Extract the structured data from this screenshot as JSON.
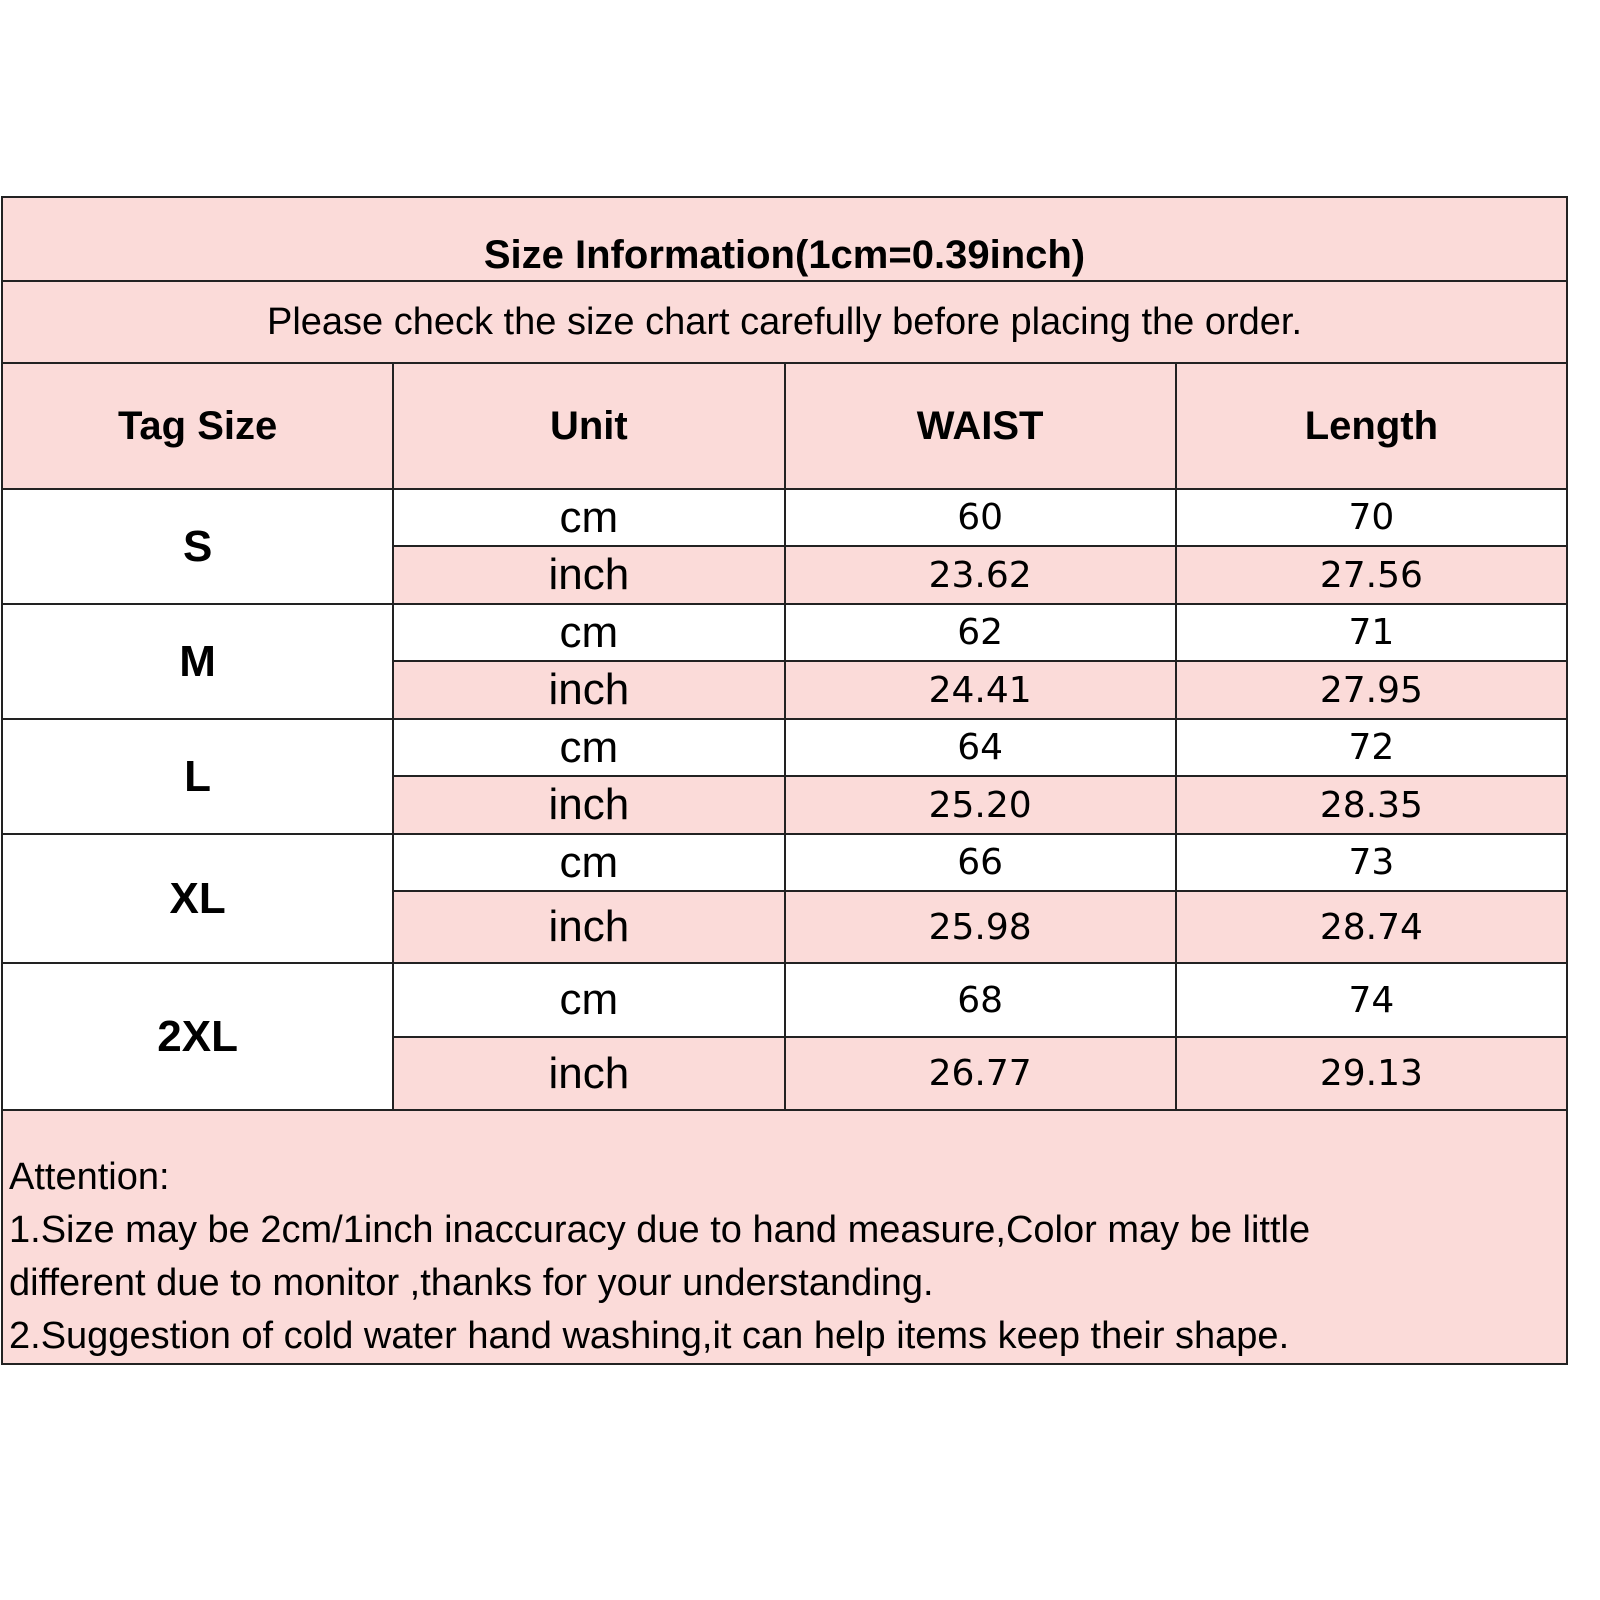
{
  "title": "Size Information(1cm=0.39inch)",
  "subtitle": "Please check the size chart carefully before placing the order.",
  "headers": [
    "Tag Size",
    "Unit",
    "WAIST",
    "Length"
  ],
  "rows": [
    {
      "size": "S",
      "cm": {
        "unit": "cm",
        "waist": "60",
        "length": "70"
      },
      "inch": {
        "unit": "inch",
        "waist": "23.62",
        "length": "27.56"
      }
    },
    {
      "size": "M",
      "cm": {
        "unit": "cm",
        "waist": "62",
        "length": "71"
      },
      "inch": {
        "unit": "inch",
        "waist": "24.41",
        "length": "27.95"
      }
    },
    {
      "size": "L",
      "cm": {
        "unit": "cm",
        "waist": "64",
        "length": "72"
      },
      "inch": {
        "unit": "inch",
        "waist": "25.20",
        "length": "28.35"
      }
    },
    {
      "size": "XL",
      "cm": {
        "unit": "cm",
        "waist": "66",
        "length": "73"
      },
      "inch": {
        "unit": "inch",
        "waist": "25.98",
        "length": "28.74"
      }
    },
    {
      "size": "2XL",
      "cm": {
        "unit": "cm",
        "waist": "68",
        "length": "74"
      },
      "inch": {
        "unit": "inch",
        "waist": "26.77",
        "length": "29.13"
      }
    }
  ],
  "attention": {
    "heading": "Attention:",
    "lines": [
      "1.Size may be 2cm/1inch inaccuracy due to hand measure,Color may be little",
      "different due to monitor ,thanks for your understanding.",
      "2.Suggestion of cold water hand washing,it can help items keep their shape."
    ]
  },
  "colors": {
    "pink": "#fbdbd9",
    "border": "#222222"
  }
}
